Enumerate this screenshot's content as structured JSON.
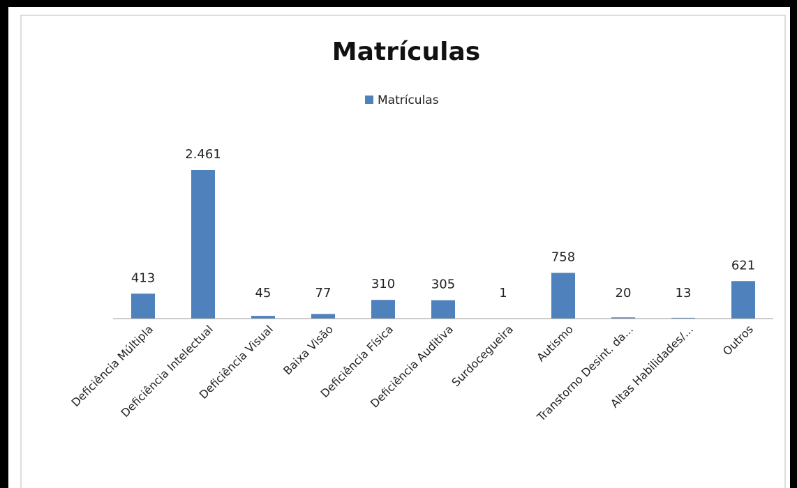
{
  "chart_data": {
    "type": "bar",
    "title": "Matrículas",
    "categories": [
      "Deficiência Múltipla",
      "Deficiência Intelectual",
      "Deficiência Visual",
      "Baixa Visão",
      "Deficiência Física",
      "Deficiência Auditiva",
      "Surdocegueira",
      "Autismo",
      "Transtorno Desint. da...",
      "Altas Habilidades/...",
      "Outros"
    ],
    "series": [
      {
        "name": "Matrículas",
        "color": "#4f81bd",
        "values": [
          413,
          2461,
          45,
          77,
          310,
          305,
          1,
          758,
          20,
          13,
          621
        ],
        "value_labels": [
          "413",
          "2.461",
          "45",
          "77",
          "310",
          "305",
          "1",
          "758",
          "20",
          "13",
          "621"
        ]
      }
    ],
    "legend": "top"
  }
}
